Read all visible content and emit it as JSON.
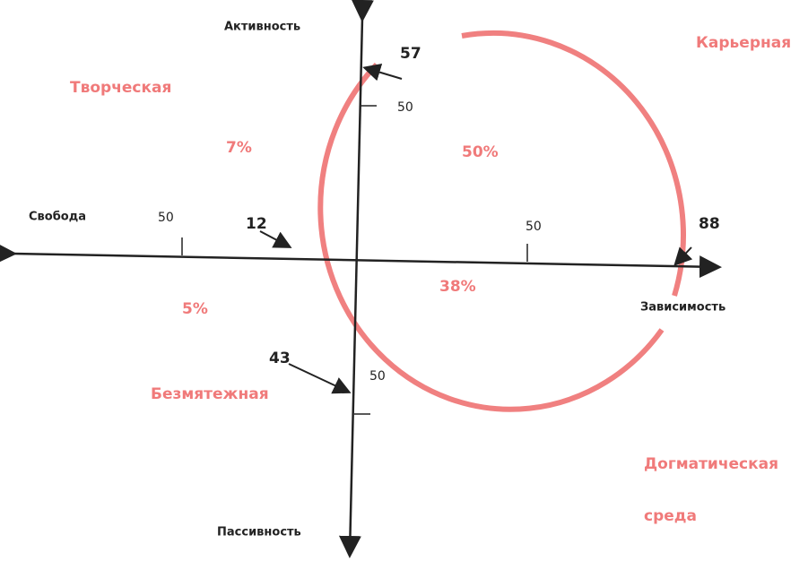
{
  "axes": {
    "top": "Активность",
    "bottom": "Пассивность",
    "left": "Свобода",
    "right": "Зависимость"
  },
  "quadrants": [
    {
      "label": "Творческая",
      "share": "7%"
    },
    {
      "label": "Карьерная",
      "share": "50%"
    },
    {
      "label": "Безмятежная",
      "share": "5%"
    },
    {
      "label": "Догматическая",
      "label2": "среда",
      "share": "38%"
    }
  ],
  "ticks": {
    "top": "50",
    "left": "50",
    "right": "50",
    "bottom": "50"
  },
  "points": {
    "top": "57",
    "left": "12",
    "right": "88",
    "bottom": "43"
  }
}
